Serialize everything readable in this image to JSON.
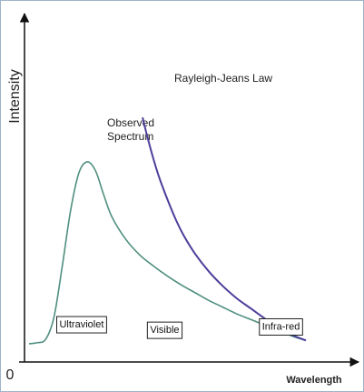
{
  "chart_data": {
    "type": "line",
    "xlabel": "Wavelength",
    "ylabel": "Intensity",
    "origin_label": "0",
    "xlim": [
      0,
      100
    ],
    "ylim": [
      0,
      100
    ],
    "series": [
      {
        "name": "Observed Spectrum",
        "label_lines": [
          "Observed",
          "Spectrum"
        ],
        "color": "#4f8f7f",
        "x": [
          0,
          3,
          6,
          9,
          12,
          15,
          18,
          21,
          24,
          27,
          30,
          35,
          40,
          45,
          50,
          55,
          60,
          65,
          70,
          75,
          80,
          85,
          90,
          95,
          100
        ],
        "y": [
          0,
          0.5,
          2,
          12,
          35,
          60,
          77,
          82,
          78,
          67,
          57,
          47,
          40,
          35,
          30.5,
          26.5,
          23,
          19.5,
          16.5,
          13.5,
          11,
          8.5,
          6,
          3.5,
          1.5
        ]
      },
      {
        "name": "Rayleigh-Jeans Law",
        "label_lines": [
          "Rayleigh-Jeans Law"
        ],
        "color": "#4b3f9a",
        "x": [
          41,
          43,
          45,
          47,
          50,
          53,
          56,
          60,
          65,
          70,
          75,
          80,
          85,
          90,
          95,
          100
        ],
        "y": [
          102,
          92,
          83,
          75,
          65,
          56,
          48.5,
          40.5,
          32.5,
          26,
          20.5,
          16,
          11.5,
          7.5,
          4,
          1.5
        ]
      }
    ],
    "annotations": [
      {
        "text": "Ultraviolet",
        "x": 19,
        "y": 9
      },
      {
        "text": "Visible",
        "x": 49,
        "y": 6.5
      },
      {
        "text": "Infra-red",
        "x": 91,
        "y": 8
      }
    ]
  }
}
